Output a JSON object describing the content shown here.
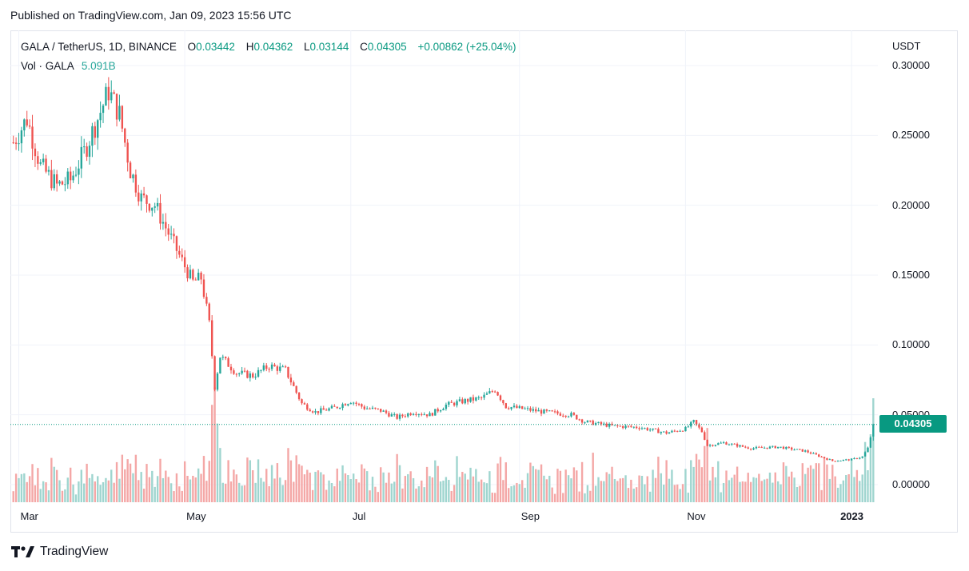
{
  "published": "Published on TradingView.com, Jan 09, 2023 15:56 UTC",
  "legend": {
    "symbol": "GALA / TetherUS, 1D, BINANCE",
    "open_label": "O",
    "open": "0.03442",
    "high_label": "H",
    "high": "0.04362",
    "low_label": "L",
    "low": "0.03144",
    "close_label": "C",
    "close": "0.04305",
    "change": "+0.00862 (+25.04%)"
  },
  "volume": {
    "label": "Vol · GALA",
    "value": "5.091B"
  },
  "currency": "USDT",
  "last_price": "0.04305",
  "brand": "TradingView",
  "colors": {
    "up": "#26a69a",
    "down": "#ef5350",
    "vol_up": "#9fd5cf",
    "vol_down": "#f4a7a6",
    "accent": "#089981"
  },
  "chart_data": {
    "type": "candlestick",
    "y_ticks": [
      "0.30000",
      "0.25000",
      "0.20000",
      "0.15000",
      "0.10000",
      "0.05000",
      "0.00000"
    ],
    "ylim": [
      0.0,
      0.3
    ],
    "x_ticks": [
      "Mar",
      "May",
      "Jul",
      "Sep",
      "Nov",
      "2023"
    ],
    "date_range": [
      "2022-02-27",
      "2023-01-09"
    ],
    "current_price_line": 0.04305,
    "close_anchors": [
      [
        "2022-02-27",
        0.245
      ],
      [
        "2022-03-04",
        0.262
      ],
      [
        "2022-03-09",
        0.228
      ],
      [
        "2022-03-15",
        0.214
      ],
      [
        "2022-03-20",
        0.218
      ],
      [
        "2022-03-25",
        0.238
      ],
      [
        "2022-03-30",
        0.262
      ],
      [
        "2022-04-03",
        0.282
      ],
      [
        "2022-04-07",
        0.265
      ],
      [
        "2022-04-11",
        0.225
      ],
      [
        "2022-04-15",
        0.205
      ],
      [
        "2022-04-20",
        0.2
      ],
      [
        "2022-04-25",
        0.18
      ],
      [
        "2022-04-30",
        0.16
      ],
      [
        "2022-05-04",
        0.145
      ],
      [
        "2022-05-07",
        0.148
      ],
      [
        "2022-05-10",
        0.115
      ],
      [
        "2022-05-12",
        0.07
      ],
      [
        "2022-05-14",
        0.092
      ],
      [
        "2022-05-20",
        0.08
      ],
      [
        "2022-05-26",
        0.078
      ],
      [
        "2022-06-01",
        0.085
      ],
      [
        "2022-06-07",
        0.082
      ],
      [
        "2022-06-13",
        0.058
      ],
      [
        "2022-06-18",
        0.052
      ],
      [
        "2022-06-25",
        0.055
      ],
      [
        "2022-07-01",
        0.06
      ],
      [
        "2022-07-06",
        0.055
      ],
      [
        "2022-07-12",
        0.053
      ],
      [
        "2022-07-18",
        0.048
      ],
      [
        "2022-07-24",
        0.052
      ],
      [
        "2022-07-30",
        0.05
      ],
      [
        "2022-08-05",
        0.057
      ],
      [
        "2022-08-12",
        0.06
      ],
      [
        "2022-08-18",
        0.062
      ],
      [
        "2022-08-23",
        0.068
      ],
      [
        "2022-08-27",
        0.056
      ],
      [
        "2022-09-03",
        0.054
      ],
      [
        "2022-09-10",
        0.052
      ],
      [
        "2022-09-20",
        0.05
      ],
      [
        "2022-09-25",
        0.045
      ],
      [
        "2022-10-05",
        0.042
      ],
      [
        "2022-10-15",
        0.041
      ],
      [
        "2022-10-25",
        0.037
      ],
      [
        "2022-11-01",
        0.04
      ],
      [
        "2022-11-04",
        0.045
      ],
      [
        "2022-11-07",
        0.038
      ],
      [
        "2022-11-09",
        0.028
      ],
      [
        "2022-11-15",
        0.03
      ],
      [
        "2022-11-25",
        0.026
      ],
      [
        "2022-12-05",
        0.027
      ],
      [
        "2022-12-15",
        0.024
      ],
      [
        "2022-12-25",
        0.017
      ],
      [
        "2023-01-01",
        0.018
      ],
      [
        "2023-01-05",
        0.02
      ],
      [
        "2023-01-07",
        0.026
      ],
      [
        "2023-01-08",
        0.034
      ],
      [
        "2023-01-09",
        0.043
      ]
    ],
    "last_candle": {
      "date": "2023-01-09",
      "open": 0.03442,
      "high": 0.04362,
      "low": 0.03144,
      "close": 0.04305
    },
    "last_volume": "5.091B"
  }
}
